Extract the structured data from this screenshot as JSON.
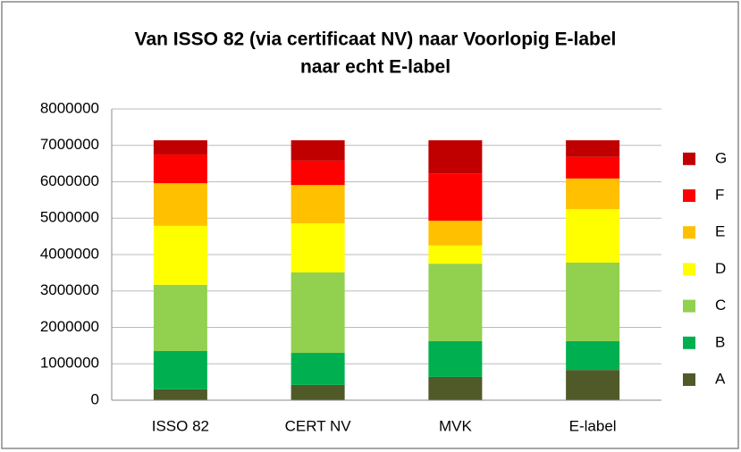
{
  "chart_data": {
    "type": "stacked_bar",
    "title": [
      "Van ISSO 82 (via certificaat NV) naar Voorlopig  E-label",
      "naar echt E-label"
    ],
    "categories": [
      "ISSO 82",
      "CERT NV",
      "MVK",
      "E-label"
    ],
    "series": [
      {
        "name": "A",
        "color": "#4f5a28",
        "values": [
          300000,
          420000,
          640000,
          830000
        ]
      },
      {
        "name": "B",
        "color": "#00b050",
        "values": [
          1050000,
          880000,
          980000,
          790000
        ]
      },
      {
        "name": "C",
        "color": "#92d050",
        "values": [
          1820000,
          2210000,
          2130000,
          2160000
        ]
      },
      {
        "name": "D",
        "color": "#ffff00",
        "values": [
          1620000,
          1350000,
          500000,
          1470000
        ]
      },
      {
        "name": "E",
        "color": "#ffc000",
        "values": [
          1170000,
          1050000,
          680000,
          840000
        ]
      },
      {
        "name": "F",
        "color": "#ff0000",
        "values": [
          790000,
          670000,
          1300000,
          590000
        ]
      },
      {
        "name": "G",
        "color": "#c00000",
        "values": [
          390000,
          560000,
          910000,
          460000
        ]
      }
    ],
    "ylim": [
      0,
      8000000
    ],
    "yticks": [
      0,
      1000000,
      2000000,
      3000000,
      4000000,
      5000000,
      6000000,
      7000000,
      8000000
    ],
    "grid": true,
    "legend": "right"
  }
}
